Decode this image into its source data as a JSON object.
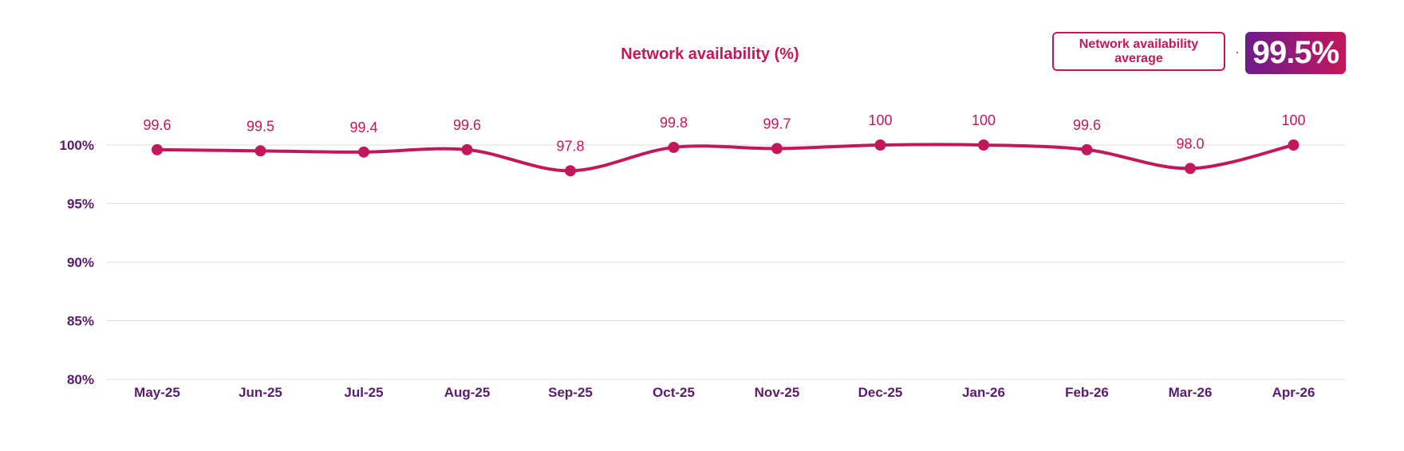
{
  "chart_data": {
    "type": "line",
    "title": "Network availability (%)",
    "categories": [
      "May-25",
      "Jun-25",
      "Jul-25",
      "Aug-25",
      "Sep-25",
      "Oct-25",
      "Nov-25",
      "Dec-25",
      "Jan-26",
      "Feb-26",
      "Mar-26",
      "Apr-26"
    ],
    "values": [
      99.6,
      99.5,
      99.4,
      99.6,
      97.8,
      99.8,
      99.7,
      100,
      100,
      99.6,
      98.0,
      100
    ],
    "data_labels": [
      "99.6",
      "99.5",
      "99.4",
      "99.6",
      "97.8",
      "99.8",
      "99.7",
      "100",
      "100",
      "99.6",
      "98.0",
      "100"
    ],
    "ylim": [
      80,
      100
    ],
    "yticks": [
      100,
      95,
      90,
      85,
      80
    ],
    "ytick_labels": [
      "100%",
      "95%",
      "90%",
      "85%",
      "80%"
    ],
    "grid": true,
    "smooth": true
  },
  "average": {
    "label": "Network availability average",
    "value": "99.5%"
  },
  "colors": {
    "line": "#c2185b",
    "axis_text": "#5b1a6e",
    "grid": "#dddddd",
    "badge_from": "#6d1b8e",
    "badge_to": "#c2185b"
  }
}
